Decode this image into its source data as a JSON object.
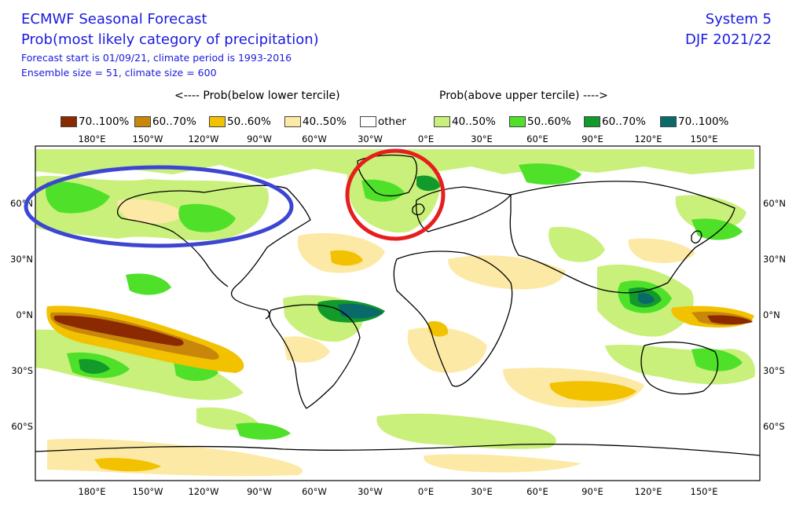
{
  "header": {
    "title": "ECMWF Seasonal Forecast",
    "subtitle": "Prob(most likely category of precipitation)",
    "line3": "Forecast start is 01/09/21, climate period is 1993-2016",
    "line4": "Ensemble size = 51, climate size = 600",
    "system": "System 5",
    "season": "DJF 2021/22"
  },
  "headings": {
    "below": "<---- Prob(below lower tercile)",
    "above": "Prob(above upper tercile) ---->"
  },
  "legend": [
    {
      "label": "70..100%",
      "color": "#8b2a00"
    },
    {
      "label": "60..70%",
      "color": "#c8860a"
    },
    {
      "label": "50..60%",
      "color": "#f2c200"
    },
    {
      "label": "40..50%",
      "color": "#fde9a6"
    },
    {
      "label": "other",
      "color": "#ffffff"
    },
    {
      "label": "40..50%",
      "color": "#c8f07a"
    },
    {
      "label": "50..60%",
      "color": "#4fe02a"
    },
    {
      "label": "60..70%",
      "color": "#129a2a"
    },
    {
      "label": "70..100%",
      "color": "#0a6a6a"
    }
  ],
  "lon_labels": [
    "180°E",
    "150°W",
    "120°W",
    "90°W",
    "60°W",
    "30°W",
    "0°E",
    "30°E",
    "60°E",
    "90°E",
    "120°E",
    "150°E"
  ],
  "lat_labels": [
    "60°N",
    "30°N",
    "0°N",
    "30°S",
    "60°S"
  ],
  "annotations": {
    "blue_ellipse_color": "#3c46d2",
    "red_circle_color": "#e61e1e"
  }
}
